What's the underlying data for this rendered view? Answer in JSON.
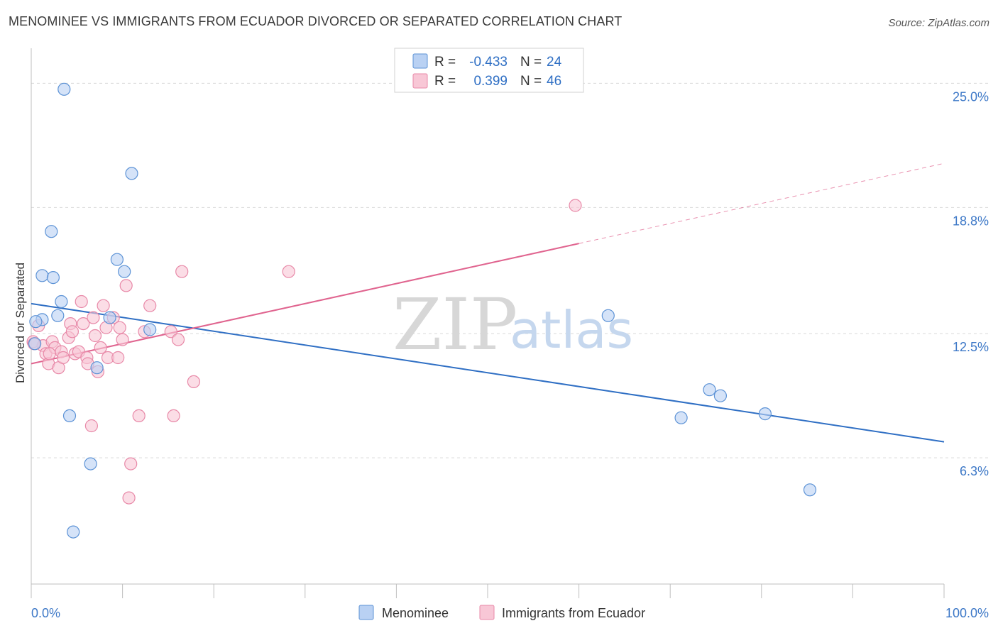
{
  "header": {
    "title": "MENOMINEE VS IMMIGRANTS FROM ECUADOR DIVORCED OR SEPARATED CORRELATION CHART",
    "source": "Source: ZipAtlas.com"
  },
  "watermark": {
    "zip": "ZIP",
    "atlas": "atlas"
  },
  "colors": {
    "blue_fill": "#b9d1f3",
    "blue_stroke": "#5d93d6",
    "blue_line": "#2f6fc4",
    "pink_fill": "#f8c7d6",
    "pink_stroke": "#e889a8",
    "pink_line": "#e0648f",
    "grid": "#d9d9d9",
    "tick_text": "#3d78c7"
  },
  "legend": {
    "rows": [
      {
        "r_label": "R =",
        "r_value": "-0.433",
        "n_label": "N =",
        "n_value": "24"
      },
      {
        "r_label": "R =",
        "r_value": "0.399",
        "n_label": "N =",
        "n_value": "46"
      }
    ]
  },
  "chart_data": {
    "type": "scatter",
    "title": "MENOMINEE VS IMMIGRANTS FROM ECUADOR DIVORCED OR SEPARATED CORRELATION CHART",
    "xlabel": "",
    "ylabel": "Divorced or Separated",
    "xlim": [
      0,
      100
    ],
    "ylim": [
      0,
      26.5
    ],
    "x_tick_labels": [
      "0.0%",
      "100.0%"
    ],
    "y_ticks": [
      {
        "value": 6.3,
        "label": "6.3%"
      },
      {
        "value": 12.5,
        "label": "12.5%"
      },
      {
        "value": 18.8,
        "label": "18.8%"
      },
      {
        "value": 25.0,
        "label": "25.0%"
      }
    ],
    "grid": true,
    "series": [
      {
        "name": "Menominee",
        "r": -0.433,
        "n": 24,
        "trend": {
          "x0": 0,
          "y0": 14.0,
          "x1": 100,
          "y1": 7.1,
          "dashed_from": null
        },
        "points": [
          [
            3.6,
            24.7
          ],
          [
            11.0,
            20.5
          ],
          [
            2.2,
            17.6
          ],
          [
            9.4,
            16.2
          ],
          [
            1.2,
            15.4
          ],
          [
            10.2,
            15.6
          ],
          [
            2.4,
            15.3
          ],
          [
            3.3,
            14.1
          ],
          [
            2.9,
            13.4
          ],
          [
            1.2,
            13.2
          ],
          [
            0.5,
            13.1
          ],
          [
            8.6,
            13.3
          ],
          [
            0.4,
            12.0
          ],
          [
            13.0,
            12.7
          ],
          [
            7.2,
            10.8
          ],
          [
            4.2,
            8.4
          ],
          [
            6.5,
            6.0
          ],
          [
            4.6,
            2.6
          ],
          [
            63.2,
            13.4
          ],
          [
            74.3,
            9.7
          ],
          [
            75.5,
            9.4
          ],
          [
            71.2,
            8.3
          ],
          [
            80.4,
            8.5
          ],
          [
            85.3,
            4.7
          ]
        ]
      },
      {
        "name": "Immigrants from Ecuador",
        "r": 0.399,
        "n": 46,
        "trend": {
          "x0": 0,
          "y0": 11.0,
          "x1": 100,
          "y1": 21.0,
          "dashed_from": 60
        },
        "points": [
          [
            0.2,
            12.1
          ],
          [
            0.8,
            12.9
          ],
          [
            1.3,
            11.9
          ],
          [
            1.6,
            11.5
          ],
          [
            1.9,
            11.0
          ],
          [
            2.3,
            12.1
          ],
          [
            2.6,
            11.8
          ],
          [
            3.0,
            10.8
          ],
          [
            3.3,
            11.6
          ],
          [
            3.5,
            11.3
          ],
          [
            4.1,
            12.3
          ],
          [
            4.3,
            13.0
          ],
          [
            4.5,
            12.6
          ],
          [
            4.8,
            11.5
          ],
          [
            5.2,
            11.6
          ],
          [
            5.5,
            14.1
          ],
          [
            5.7,
            13.0
          ],
          [
            6.1,
            11.3
          ],
          [
            6.2,
            11.0
          ],
          [
            6.6,
            7.9
          ],
          [
            6.8,
            13.3
          ],
          [
            7.0,
            12.4
          ],
          [
            7.3,
            10.6
          ],
          [
            7.6,
            11.8
          ],
          [
            7.9,
            13.9
          ],
          [
            8.2,
            12.8
          ],
          [
            8.4,
            11.3
          ],
          [
            9.0,
            13.3
          ],
          [
            9.5,
            11.3
          ],
          [
            9.7,
            12.8
          ],
          [
            10.0,
            12.2
          ],
          [
            10.4,
            14.9
          ],
          [
            10.7,
            4.3
          ],
          [
            10.9,
            6.0
          ],
          [
            11.8,
            8.4
          ],
          [
            12.4,
            12.6
          ],
          [
            13.0,
            13.9
          ],
          [
            15.3,
            12.6
          ],
          [
            15.6,
            8.4
          ],
          [
            16.1,
            12.2
          ],
          [
            16.5,
            15.6
          ],
          [
            17.8,
            10.1
          ],
          [
            28.2,
            15.6
          ],
          [
            59.6,
            18.9
          ],
          [
            0.3,
            12.0
          ],
          [
            2.0,
            11.5
          ]
        ]
      }
    ]
  }
}
